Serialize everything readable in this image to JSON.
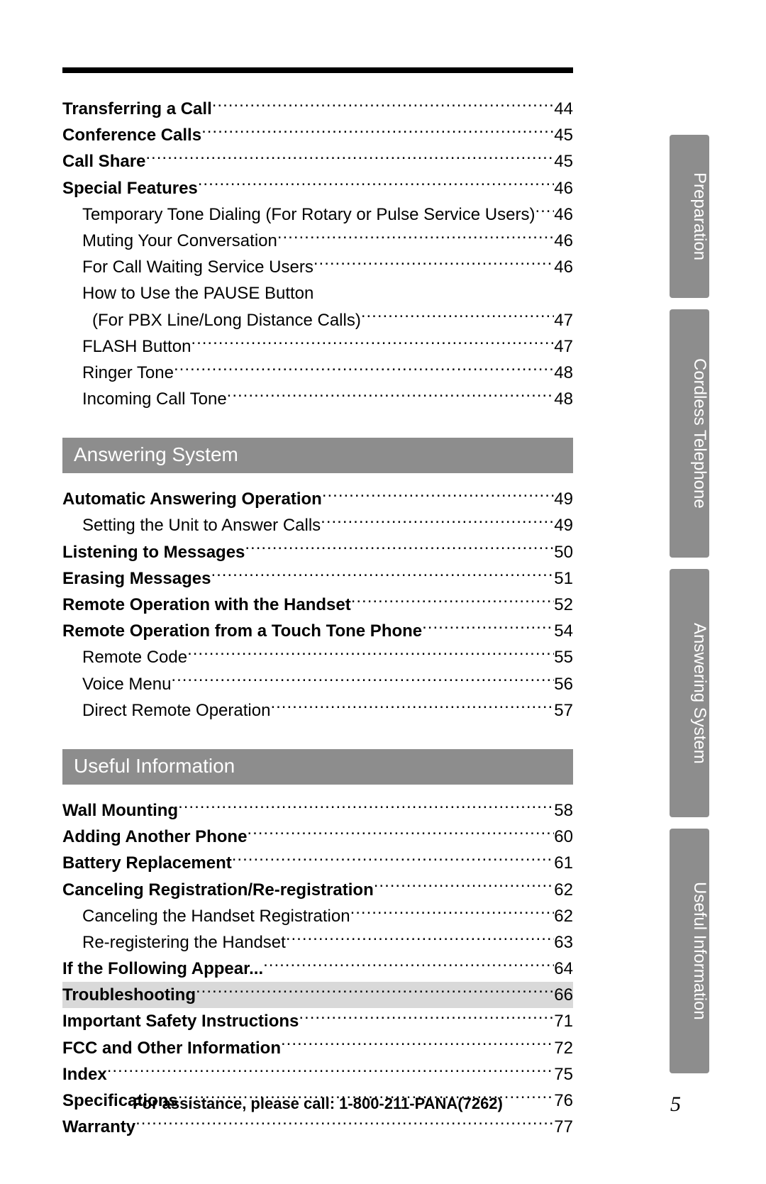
{
  "page_number": "5",
  "footer_text": "For assistance, please call: 1-800-211-PANA(7262)",
  "side_tabs": [
    {
      "label": "Preparation",
      "size": "s"
    },
    {
      "label": "Cordless Telephone",
      "size": "m"
    },
    {
      "label": "Answering System",
      "size": "l"
    },
    {
      "label": "Useful Information",
      "size": "xl"
    }
  ],
  "colors": {
    "tab_bg": "#8d8d8d",
    "tab_fg": "#ffffff",
    "section_bg": "#8d8d8d",
    "section_fg": "#ffffff",
    "highlight_bg": "#d9d9d9",
    "rule": "#000000",
    "text": "#000000",
    "page_bg": "#ffffff"
  },
  "typography": {
    "body_fontsize_pt": 18,
    "section_fontsize_pt": 21,
    "footer_fontsize_pt": 16,
    "page_num_fontsize_pt": 22,
    "font_family": "Arial"
  },
  "blocks": [
    {
      "kind": "toc",
      "rows": [
        {
          "label": "Transferring a Call",
          "page": "44",
          "style": "bold"
        },
        {
          "label": "Conference Calls",
          "page": "45",
          "style": "bold"
        },
        {
          "label": "Call Share",
          "page": "45",
          "style": "bold"
        },
        {
          "label": "Special Features",
          "page": "46",
          "style": "bold"
        },
        {
          "label": "Temporary Tone Dialing (For Rotary or Pulse Service Users)",
          "page": "46",
          "style": "sub"
        },
        {
          "label": "Muting Your Conversation",
          "page": "46",
          "style": "sub"
        },
        {
          "label": "For Call Waiting Service Users",
          "page": "46",
          "style": "sub"
        },
        {
          "label": "How to Use the PAUSE Button",
          "page": "",
          "style": "sub",
          "no_leader": true
        },
        {
          "label": " (For PBX Line/Long Distance Calls)",
          "page": "47",
          "style": "sub cont"
        },
        {
          "label": "FLASH Button",
          "page": "47",
          "style": "sub"
        },
        {
          "label": "Ringer Tone",
          "page": "48",
          "style": "sub"
        },
        {
          "label": "Incoming Call Tone",
          "page": "48",
          "style": "sub"
        }
      ]
    },
    {
      "kind": "section",
      "title": "Answering System",
      "rows": [
        {
          "label": "Automatic Answering Operation",
          "page": "49",
          "style": "bold"
        },
        {
          "label": "Setting the Unit to Answer Calls",
          "page": "49",
          "style": "sub"
        },
        {
          "label": "Listening to Messages",
          "page": "50",
          "style": "bold"
        },
        {
          "label": "Erasing Messages",
          "page": "51",
          "style": "bold"
        },
        {
          "label": "Remote Operation with the Handset",
          "page": "52",
          "style": "bold"
        },
        {
          "label": "Remote Operation from a Touch Tone Phone",
          "page": "54",
          "style": "bold"
        },
        {
          "label": "Remote Code",
          "page": "55",
          "style": "sub"
        },
        {
          "label": "Voice Menu",
          "page": "56",
          "style": "sub"
        },
        {
          "label": "Direct Remote Operation",
          "page": "57",
          "style": "sub"
        }
      ]
    },
    {
      "kind": "section",
      "title": "Useful Information",
      "rows": [
        {
          "label": "Wall Mounting",
          "page": "58",
          "style": "bold"
        },
        {
          "label": "Adding Another Phone",
          "page": "60",
          "style": "bold"
        },
        {
          "label": "Battery Replacement",
          "page": "61",
          "style": "bold"
        },
        {
          "label": "Canceling Registration/Re-registration",
          "page": "62",
          "style": "bold"
        },
        {
          "label": "Canceling the Handset Registration",
          "page": "62",
          "style": "sub"
        },
        {
          "label": "Re-registering the Handset",
          "page": "63",
          "style": "sub"
        },
        {
          "label": "If the Following Appear...",
          "page": "64",
          "style": "bold"
        },
        {
          "label": "Troubleshooting",
          "page": "66",
          "style": "bold",
          "highlight": true
        },
        {
          "label": "Important Safety Instructions",
          "page": "71",
          "style": "bold"
        },
        {
          "label": "FCC and Other Information",
          "page": "72",
          "style": "bold"
        },
        {
          "label": "Index",
          "page": "75",
          "style": "bold"
        },
        {
          "label": "Specifications",
          "page": "76",
          "style": "bold"
        },
        {
          "label": "Warranty",
          "page": "77",
          "style": "bold"
        }
      ]
    }
  ]
}
